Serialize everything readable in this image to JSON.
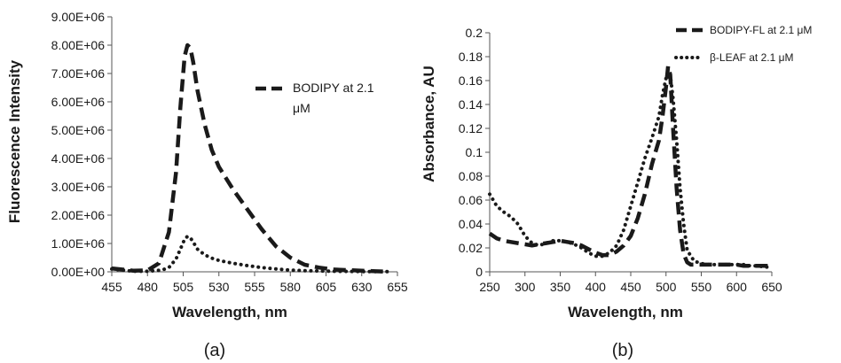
{
  "colors": {
    "series": "#1a1a1a",
    "axis": "#555555",
    "background": "#ffffff"
  },
  "chart_data": [
    {
      "type": "line",
      "caption": "(a)",
      "xlabel": "Wavelength, nm",
      "ylabel": "Fluorescence Intensity",
      "xlim": [
        455,
        655
      ],
      "ylim": [
        0,
        9000000
      ],
      "x_ticks": [
        "455",
        "480",
        "505",
        "530",
        "555",
        "580",
        "605",
        "630",
        "655"
      ],
      "y_ticks": [
        "0.00E+00",
        "1.00E+06",
        "2.00E+06",
        "3.00E+06",
        "4.00E+06",
        "5.00E+06",
        "6.00E+06",
        "7.00E+06",
        "8.00E+06",
        "9.00E+06"
      ],
      "grid": false,
      "legend_position": "top-right",
      "legend_lines": [
        "BODIPY at 2.1",
        "μM"
      ],
      "series": [
        {
          "name": "BODIPY at 2.1 μM",
          "style": "dashed",
          "x": [
            455,
            470,
            480,
            488,
            495,
            500,
            503,
            506,
            508,
            510,
            512,
            515,
            520,
            525,
            530,
            540,
            550,
            560,
            570,
            580,
            590,
            600,
            610,
            620,
            630,
            640,
            648
          ],
          "y": [
            120000,
            40000,
            50000,
            300000,
            1400000,
            3500000,
            5800000,
            7600000,
            8000000,
            7900000,
            7400000,
            6400000,
            5200000,
            4300000,
            3700000,
            2900000,
            2200000,
            1500000,
            900000,
            500000,
            250000,
            150000,
            80000,
            60000,
            40000,
            20000,
            10000
          ]
        },
        {
          "style": "dotted",
          "x": [
            455,
            470,
            480,
            490,
            495,
            500,
            503,
            506,
            508,
            510,
            512,
            515,
            520,
            525,
            530,
            540,
            550,
            560,
            570,
            580,
            590,
            600,
            610,
            620,
            630,
            640,
            648
          ],
          "y": [
            100000,
            20000,
            20000,
            60000,
            150000,
            450000,
            800000,
            1150000,
            1250000,
            1200000,
            1050000,
            800000,
            600000,
            480000,
            400000,
            300000,
            220000,
            150000,
            100000,
            60000,
            40000,
            30000,
            20000,
            15000,
            10000,
            8000,
            5000
          ]
        }
      ]
    },
    {
      "type": "line",
      "caption": "(b)",
      "xlabel": "Wavelength, nm",
      "ylabel": "Absorbance, AU",
      "xlim": [
        250,
        650
      ],
      "ylim": [
        0,
        0.2
      ],
      "x_ticks": [
        "250",
        "300",
        "350",
        "400",
        "450",
        "500",
        "550",
        "600",
        "650"
      ],
      "y_ticks": [
        "0",
        "0.02",
        "0.04",
        "0.06",
        "0.08",
        "0.1",
        "0.12",
        "0.14",
        "0.16",
        "0.18",
        "0.2"
      ],
      "grid": false,
      "legend_position": "top-right",
      "series": [
        {
          "name": "BODIPY-FL at 2.1 μM",
          "style": "dashed",
          "x": [
            250,
            260,
            270,
            280,
            290,
            300,
            310,
            320,
            330,
            340,
            350,
            360,
            370,
            380,
            390,
            400,
            410,
            420,
            430,
            440,
            450,
            460,
            470,
            480,
            485,
            490,
            495,
            500,
            503,
            506,
            510,
            515,
            520,
            525,
            530,
            535,
            540,
            550,
            560,
            570,
            580,
            590,
            600,
            610,
            620,
            630,
            640,
            650
          ],
          "y": [
            0.032,
            0.028,
            0.026,
            0.025,
            0.024,
            0.023,
            0.022,
            0.023,
            0.024,
            0.025,
            0.026,
            0.025,
            0.024,
            0.022,
            0.019,
            0.016,
            0.014,
            0.014,
            0.017,
            0.022,
            0.03,
            0.045,
            0.065,
            0.09,
            0.1,
            0.11,
            0.13,
            0.155,
            0.172,
            0.165,
            0.12,
            0.07,
            0.035,
            0.015,
            0.008,
            0.006,
            0.006,
            0.006,
            0.006,
            0.006,
            0.006,
            0.006,
            0.006,
            0.005,
            0.005,
            0.005,
            0.005,
            0.005
          ]
        },
        {
          "name": "β-LEAF at 2.1 μM",
          "style": "dotted",
          "x": [
            250,
            260,
            270,
            280,
            290,
            300,
            310,
            320,
            330,
            340,
            350,
            360,
            370,
            380,
            390,
            400,
            410,
            420,
            430,
            440,
            450,
            460,
            470,
            480,
            490,
            495,
            500,
            503,
            506,
            510,
            515,
            520,
            525,
            530,
            540,
            550,
            560,
            570,
            580,
            590,
            600,
            610,
            620,
            630,
            640,
            650
          ],
          "y": [
            0.065,
            0.055,
            0.05,
            0.046,
            0.04,
            0.03,
            0.024,
            0.022,
            0.024,
            0.026,
            0.026,
            0.025,
            0.023,
            0.02,
            0.016,
            0.013,
            0.013,
            0.016,
            0.022,
            0.035,
            0.055,
            0.075,
            0.095,
            0.112,
            0.13,
            0.148,
            0.162,
            0.168,
            0.165,
            0.145,
            0.11,
            0.07,
            0.04,
            0.018,
            0.009,
            0.007,
            0.006,
            0.006,
            0.006,
            0.006,
            0.006,
            0.006,
            0.005,
            0.005,
            0.004,
            0.004
          ]
        }
      ]
    }
  ]
}
